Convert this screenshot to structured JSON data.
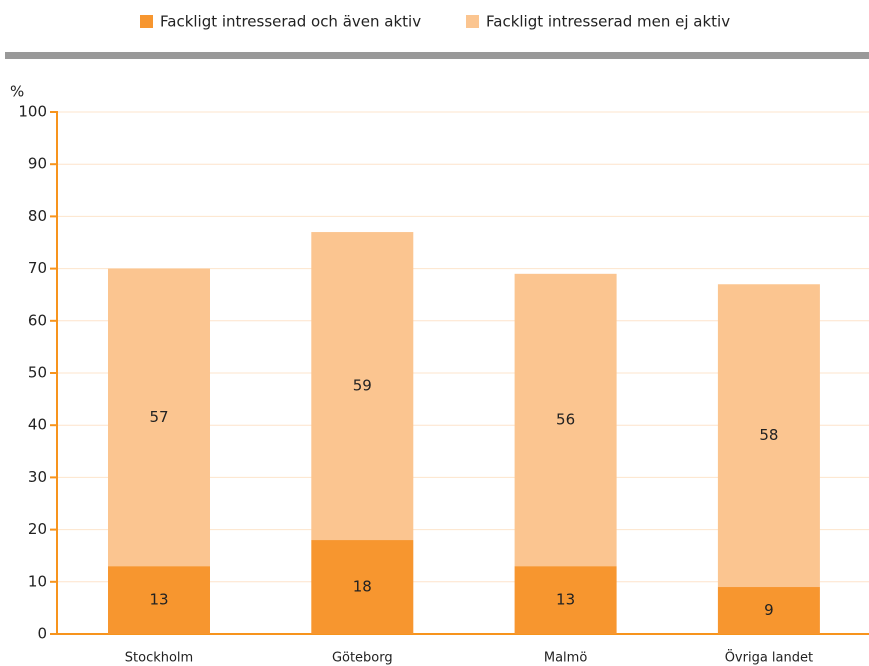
{
  "chart_data": {
    "type": "stacked_bar",
    "y_label": "%",
    "categories": [
      "Stockholm",
      "Göteborg",
      "Malmö",
      "Övriga landet"
    ],
    "series": [
      {
        "name": "Fackligt intresserad och även aktiv",
        "color": "#f7962f",
        "values": [
          13,
          18,
          13,
          9
        ]
      },
      {
        "name": "Fackligt intresserad men ej aktiv",
        "color": "#fbc590",
        "values": [
          57,
          59,
          56,
          58
        ]
      }
    ],
    "ylim": [
      0,
      100
    ],
    "yticks": [
      0,
      10,
      20,
      30,
      40,
      50,
      60,
      70,
      80,
      90,
      100
    ],
    "grid": true,
    "axis_color": "#f7941d",
    "legend": "top"
  }
}
